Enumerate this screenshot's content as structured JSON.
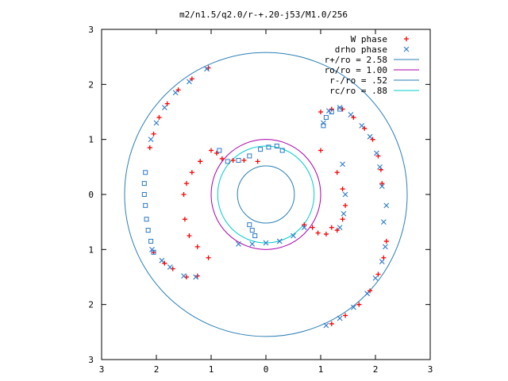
{
  "chart_data": {
    "type": "scatter",
    "title": "m2/n1.5/q2.0/r-+.20-j53/M1.0/256",
    "xlabel": "",
    "ylabel": "",
    "xlim": [
      -3,
      3
    ],
    "ylim": [
      -3,
      3
    ],
    "x_ticks": [
      "3",
      "2",
      "1",
      "0",
      "1",
      "2",
      "3"
    ],
    "y_ticks": [
      "3",
      "2",
      "1",
      "0",
      "1",
      "2",
      "3"
    ],
    "grid": false,
    "legend_position": "top-right",
    "series": [
      {
        "name": "W phase",
        "marker": "plus",
        "color": "#ff0000",
        "points": [
          [
            -1.05,
            2.3
          ],
          [
            -1.35,
            2.1
          ],
          [
            -1.6,
            1.9
          ],
          [
            -1.8,
            1.65
          ],
          [
            -1.95,
            1.4
          ],
          [
            -2.05,
            1.1
          ],
          [
            -2.12,
            0.85
          ],
          [
            -1.0,
            0.8
          ],
          [
            -1.2,
            0.6
          ],
          [
            -1.35,
            0.4
          ],
          [
            -1.45,
            0.2
          ],
          [
            -1.5,
            0.0
          ],
          [
            -1.48,
            -0.45
          ],
          [
            -1.4,
            -0.75
          ],
          [
            -1.25,
            -0.95
          ],
          [
            -1.05,
            -1.15
          ],
          [
            -1.25,
            -1.48
          ],
          [
            -1.45,
            -1.5
          ],
          [
            -1.7,
            -1.35
          ],
          [
            -1.85,
            -1.25
          ],
          [
            -2.05,
            -1.05
          ],
          [
            1.0,
            1.5
          ],
          [
            1.2,
            1.55
          ],
          [
            1.4,
            1.55
          ],
          [
            1.6,
            1.4
          ],
          [
            1.8,
            1.2
          ],
          [
            1.95,
            1.0
          ],
          [
            2.05,
            0.7
          ],
          [
            2.1,
            0.45
          ],
          [
            2.12,
            0.2
          ],
          [
            1.0,
            0.8
          ],
          [
            1.3,
            0.4
          ],
          [
            1.4,
            0.1
          ],
          [
            1.45,
            -0.2
          ],
          [
            1.4,
            -0.45
          ],
          [
            1.3,
            -0.65
          ],
          [
            1.2,
            -2.35
          ],
          [
            1.45,
            -2.2
          ],
          [
            1.7,
            -2.0
          ],
          [
            1.9,
            -1.75
          ],
          [
            2.05,
            -1.45
          ],
          [
            2.15,
            -1.15
          ],
          [
            2.2,
            -0.85
          ],
          [
            -1.2,
            0.6
          ],
          [
            -0.9,
            0.75
          ],
          [
            -0.8,
            0.65
          ],
          [
            -0.6,
            0.62
          ],
          [
            -0.4,
            0.62
          ],
          [
            -0.15,
            0.6
          ],
          [
            0.7,
            -0.55
          ],
          [
            0.85,
            -0.6
          ],
          [
            0.95,
            -0.7
          ],
          [
            1.1,
            -0.72
          ],
          [
            1.2,
            -0.6
          ]
        ]
      },
      {
        "name": "drho phase",
        "marker": "x",
        "color": "#2a78c8",
        "points": [
          [
            -1.08,
            2.28
          ],
          [
            -1.4,
            2.05
          ],
          [
            -1.65,
            1.85
          ],
          [
            -1.85,
            1.58
          ],
          [
            -2.0,
            1.3
          ],
          [
            -2.1,
            1.0
          ],
          [
            -1.28,
            -1.5
          ],
          [
            -1.5,
            -1.48
          ],
          [
            -1.75,
            -1.32
          ],
          [
            -1.9,
            -1.2
          ],
          [
            -2.08,
            -1.0
          ],
          [
            1.05,
            1.3
          ],
          [
            1.15,
            1.52
          ],
          [
            1.35,
            1.58
          ],
          [
            1.55,
            1.45
          ],
          [
            1.75,
            1.25
          ],
          [
            1.9,
            1.05
          ],
          [
            2.02,
            0.75
          ],
          [
            2.08,
            0.5
          ],
          [
            2.12,
            0.15
          ],
          [
            1.4,
            0.55
          ],
          [
            1.45,
            0.0
          ],
          [
            1.42,
            -0.35
          ],
          [
            1.35,
            -0.6
          ],
          [
            1.1,
            -2.38
          ],
          [
            1.35,
            -2.25
          ],
          [
            1.6,
            -2.05
          ],
          [
            1.85,
            -1.8
          ],
          [
            2.0,
            -1.52
          ],
          [
            2.12,
            -1.22
          ],
          [
            2.18,
            -0.95
          ],
          [
            2.15,
            -0.5
          ],
          [
            2.2,
            -0.2
          ],
          [
            -0.5,
            -0.9
          ],
          [
            -0.25,
            -0.9
          ],
          [
            0.0,
            -0.88
          ],
          [
            0.25,
            -0.85
          ],
          [
            0.5,
            -0.75
          ],
          [
            0.7,
            -0.6
          ]
        ]
      },
      {
        "name": "",
        "marker": "open-square",
        "color": "#2a78c8",
        "points": [
          [
            -2.2,
            0.4
          ],
          [
            -2.22,
            0.2
          ],
          [
            -2.22,
            0.0
          ],
          [
            -2.2,
            -0.2
          ],
          [
            -2.18,
            -0.45
          ],
          [
            -2.15,
            -0.65
          ],
          [
            -2.1,
            -0.85
          ],
          [
            -2.05,
            -1.05
          ],
          [
            -0.85,
            0.8
          ],
          [
            -0.7,
            0.6
          ],
          [
            -0.5,
            0.62
          ],
          [
            -0.3,
            0.7
          ],
          [
            -0.1,
            0.82
          ],
          [
            0.05,
            0.86
          ],
          [
            0.2,
            0.88
          ],
          [
            0.3,
            0.8
          ],
          [
            -0.3,
            -0.55
          ],
          [
            -0.25,
            -0.65
          ],
          [
            -0.2,
            -0.75
          ],
          [
            1.05,
            1.25
          ],
          [
            1.1,
            1.4
          ],
          [
            1.2,
            1.5
          ],
          [
            1.35,
            1.55
          ]
        ]
      }
    ],
    "circles": [
      {
        "name": "r+/ro = 2.58",
        "radius": 2.58,
        "color": "#2a7fb4"
      },
      {
        "name": "ro/ro = 1.00",
        "radius": 1.0,
        "color": "#aa00aa"
      },
      {
        "name": "r-/ro = .52",
        "radius": 0.52,
        "color": "#2a7fb4"
      },
      {
        "name": "rc/ro = .88",
        "radius": 0.88,
        "color": "#00cccc"
      }
    ]
  }
}
